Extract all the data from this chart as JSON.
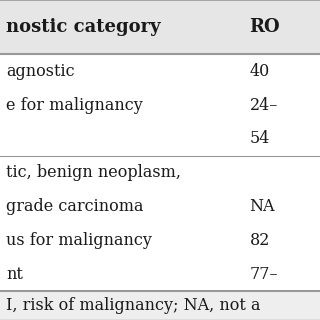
{
  "col1_header": "nostic category",
  "col2_header": "RO",
  "rows": [
    {
      "col1": "agnostic",
      "col2": "40"
    },
    {
      "col1": "e for malignancy",
      "col2": "24–"
    },
    {
      "col1": "",
      "col2": "54"
    },
    {
      "col1": "tic, benign neoplasm,",
      "col2": ""
    },
    {
      "col1": "grade carcinoma",
      "col2": "NA"
    },
    {
      "col1": "us for malignancy",
      "col2": "82"
    },
    {
      "col1": "nt",
      "col2": "77–"
    }
  ],
  "footer": "I, risk of malignancy; NA, not a",
  "header_bg": "#e6e6e6",
  "row_bg": "#ffffff",
  "footer_bg": "#eeeeee",
  "text_color": "#1a1a1a",
  "line_color": "#999999",
  "font_size": 11.5,
  "header_font_size": 13.0,
  "footer_font_size": 11.5
}
